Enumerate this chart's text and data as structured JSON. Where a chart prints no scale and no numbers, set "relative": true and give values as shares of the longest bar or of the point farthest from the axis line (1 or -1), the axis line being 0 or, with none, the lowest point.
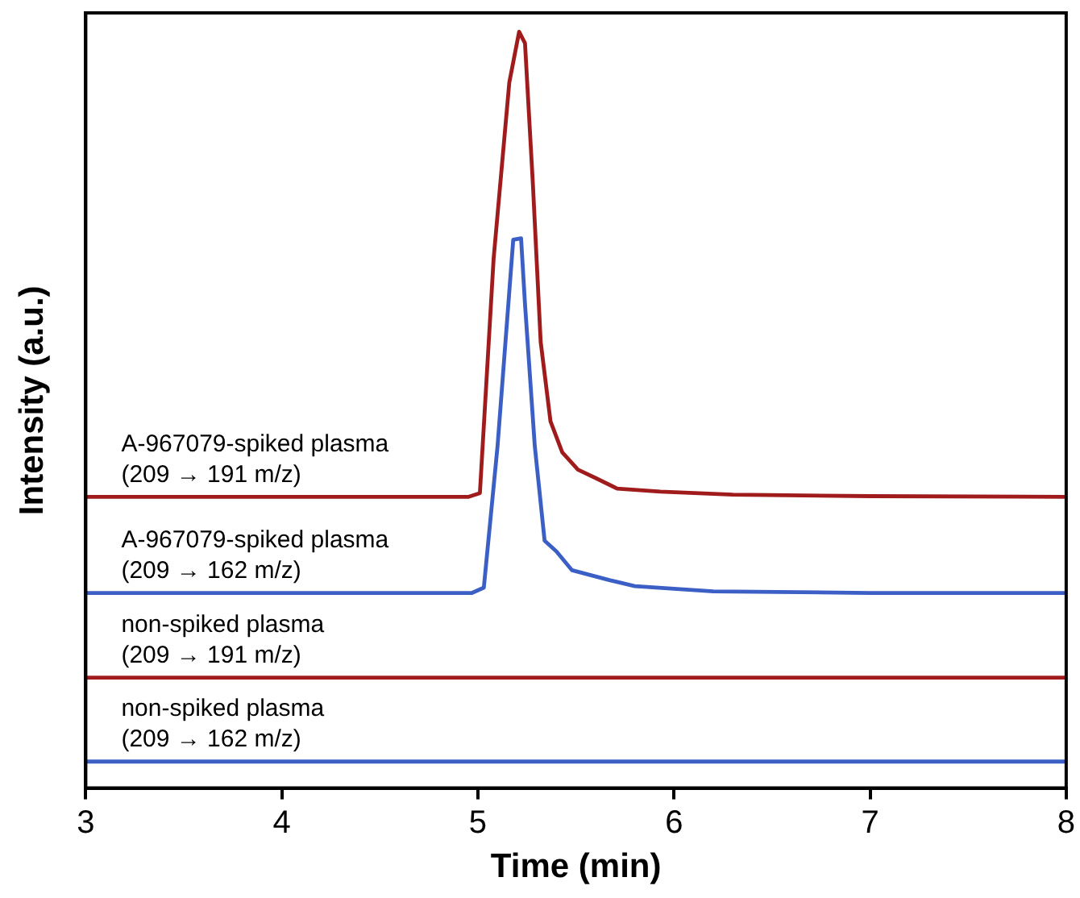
{
  "chart_data": {
    "type": "line",
    "xlabel": "Time (min)",
    "ylabel": "Intensity (a.u.)",
    "relative": true,
    "xlim": [
      3,
      8
    ],
    "xticks": [
      3,
      4,
      5,
      6,
      7,
      8
    ],
    "grid": false,
    "legend": false,
    "marker": "none",
    "line_style": "solid",
    "series": [
      {
        "name": "A-967079-spiked plasma\n(209 → 191 m/z)",
        "color": "#a01c1c",
        "x": [
          3,
          4,
          4.95,
          5.01,
          5.08,
          5.16,
          5.21,
          5.24,
          5.28,
          5.32,
          5.37,
          5.43,
          5.51,
          5.6,
          5.71,
          5.93,
          6.3,
          7,
          8
        ],
        "values": [
          0.385,
          0.385,
          0.385,
          0.39,
          0.7,
          0.933,
          1,
          0.985,
          0.8,
          0.59,
          0.485,
          0.444,
          0.421,
          0.41,
          0.396,
          0.392,
          0.388,
          0.386,
          0.385
        ]
      },
      {
        "name": "A-967079-spiked plasma\n(209 → 162 m/z)",
        "color": "#3b5fc4",
        "x": [
          3,
          4,
          4.97,
          5.03,
          5.1,
          5.18,
          5.22,
          5.24,
          5.29,
          5.34,
          5.4,
          5.48,
          5.67,
          5.8,
          6.2,
          7,
          8
        ],
        "values": [
          0.258,
          0.258,
          0.258,
          0.265,
          0.452,
          0.725,
          0.727,
          0.64,
          0.452,
          0.327,
          0.313,
          0.288,
          0.275,
          0.267,
          0.26,
          0.258,
          0.258
        ]
      },
      {
        "name": "non-spiked plasma\n(209 → 191 m/z)",
        "color": "#a01c1c",
        "x": [
          3,
          8
        ],
        "values": [
          0.146,
          0.146
        ]
      },
      {
        "name": "non-spiked plasma\n(209 → 162 m/z)",
        "color": "#3b5fc4",
        "x": [
          3,
          8
        ],
        "values": [
          0.035,
          0.035
        ]
      }
    ]
  }
}
